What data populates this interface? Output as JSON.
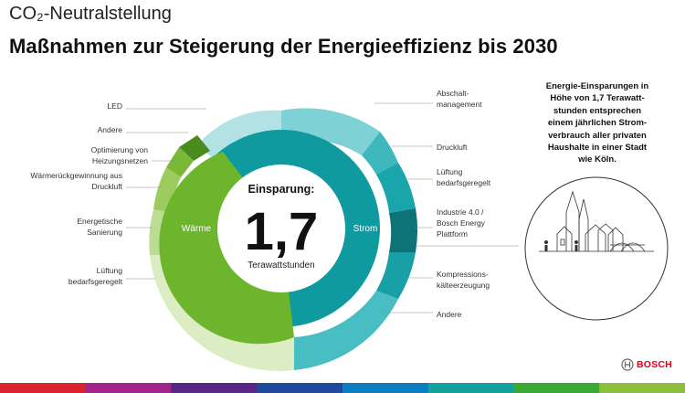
{
  "header": {
    "title": "CO₂-Neutralstellung",
    "subtitle": "Maßnahmen zur Steigerung der Energieeffizienz bis 2030"
  },
  "center": {
    "heading": "Einsparung:",
    "value": "1,7",
    "unit": "Terawattstunden",
    "left_label": "Wärme",
    "right_label": "Strom"
  },
  "left_labels": {
    "led": "LED",
    "andere": "Andere",
    "heizungsnetze": "Optimierung von\nHeizungsnetzen",
    "waermerueck": "Wärmerückgewinnung aus\nDruckluft",
    "sanierung": "Energetische\nSanierung",
    "lueftung": "Lüftung\nbedarfsgeregelt"
  },
  "right_labels": {
    "abschalt": "Abschalt-\nmanagement",
    "druckluft": "Druckluft",
    "lueftung": "Lüftung\nbedarfsgeregelt",
    "industrie": "Industrie 4.0 /\nBosch Energy\nPlattform",
    "kompression": "Kompressions-\nkälteerzeugung",
    "andere": "Andere"
  },
  "info_box": "Energie-Einsparungen in\nHöhe von 1,7 Terawatt-\nstunden entsprechen\neinem jährlichen Strom-\nverbrauch aller privaten\nHaushalte in einer Stadt\nwie Köln.",
  "brand": {
    "logo_text": "BOSCH",
    "red": "#e20015"
  },
  "colors": {
    "strom": "#0f9aa0",
    "waerme": "#6cb52d",
    "accent_dark": "#0d7377",
    "footer_stripes": [
      "#d9232e",
      "#a3238c",
      "#572787",
      "#1e4a9b",
      "#0b7dc1",
      "#13a2a0",
      "#3aa935",
      "#8cbf3b"
    ]
  }
}
